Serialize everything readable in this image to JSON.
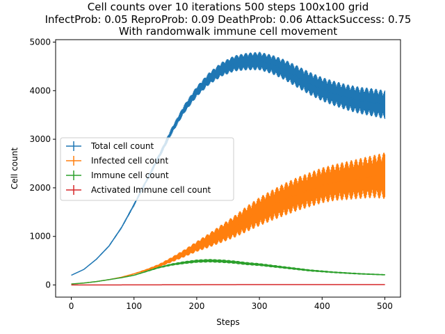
{
  "chart_data": {
    "type": "line",
    "title_lines": [
      "Cell counts over 10 iterations 500 steps 100x100 grid",
      "InfectProb: 0.05 ReproProb: 0.09 DeathProb: 0.06 AttackSuccess: 0.75",
      "With randomwalk immune cell movement"
    ],
    "xlabel": "Steps",
    "ylabel": "Cell count",
    "xlim": [
      -25,
      525
    ],
    "ylim": [
      -250,
      5050
    ],
    "xticks": [
      0,
      100,
      200,
      300,
      400,
      500
    ],
    "yticks": [
      0,
      1000,
      2000,
      3000,
      4000,
      5000
    ],
    "legend_position": "center-left",
    "series": [
      {
        "name": "Total cell count",
        "color": "#1f77b4",
        "x": [
          0,
          20,
          40,
          60,
          80,
          100,
          120,
          140,
          160,
          180,
          200,
          220,
          240,
          260,
          280,
          300,
          320,
          340,
          360,
          380,
          400,
          420,
          440,
          460,
          480,
          500
        ],
        "y": [
          200,
          320,
          530,
          800,
          1180,
          1650,
          2150,
          2650,
          3170,
          3620,
          3980,
          4250,
          4440,
          4560,
          4600,
          4610,
          4540,
          4430,
          4290,
          4150,
          4030,
          3940,
          3860,
          3800,
          3760,
          3710
        ],
        "err": [
          0,
          5,
          10,
          15,
          20,
          30,
          40,
          55,
          70,
          90,
          110,
          130,
          150,
          165,
          180,
          190,
          200,
          215,
          230,
          240,
          250,
          260,
          270,
          280,
          290,
          300
        ]
      },
      {
        "name": "Infected cell count",
        "color": "#ff7f0e",
        "x": [
          0,
          20,
          40,
          60,
          80,
          100,
          120,
          140,
          160,
          180,
          200,
          220,
          240,
          260,
          280,
          300,
          320,
          340,
          360,
          380,
          400,
          420,
          440,
          460,
          480,
          500
        ],
        "y": [
          20,
          40,
          70,
          110,
          160,
          230,
          310,
          400,
          520,
          650,
          790,
          920,
          1060,
          1200,
          1360,
          1510,
          1640,
          1760,
          1870,
          1960,
          2050,
          2110,
          2150,
          2190,
          2230,
          2250
        ],
        "err": [
          0,
          2,
          3,
          5,
          8,
          12,
          20,
          35,
          55,
          80,
          110,
          150,
          190,
          230,
          270,
          300,
          320,
          340,
          350,
          360,
          370,
          380,
          400,
          420,
          440,
          480
        ]
      },
      {
        "name": "Immune cell count",
        "color": "#2ca02c",
        "x": [
          0,
          20,
          40,
          60,
          80,
          100,
          120,
          140,
          160,
          180,
          200,
          220,
          240,
          260,
          280,
          300,
          320,
          340,
          360,
          380,
          400,
          420,
          440,
          460,
          480,
          500
        ],
        "y": [
          20,
          40,
          70,
          110,
          150,
          200,
          280,
          360,
          420,
          460,
          490,
          500,
          490,
          470,
          440,
          420,
          390,
          360,
          330,
          300,
          280,
          260,
          245,
          230,
          220,
          210
        ],
        "err": [
          0,
          2,
          4,
          6,
          8,
          10,
          14,
          18,
          24,
          30,
          34,
          36,
          36,
          34,
          32,
          30,
          28,
          26,
          24,
          22,
          20,
          18,
          17,
          16,
          15,
          14
        ]
      },
      {
        "name": "Activated Immune cell count",
        "color": "#d62728",
        "x": [
          0,
          100,
          200,
          300,
          400,
          500
        ],
        "y": [
          0,
          2,
          5,
          8,
          8,
          8
        ],
        "err": [
          0,
          1,
          2,
          3,
          3,
          3
        ]
      }
    ]
  }
}
